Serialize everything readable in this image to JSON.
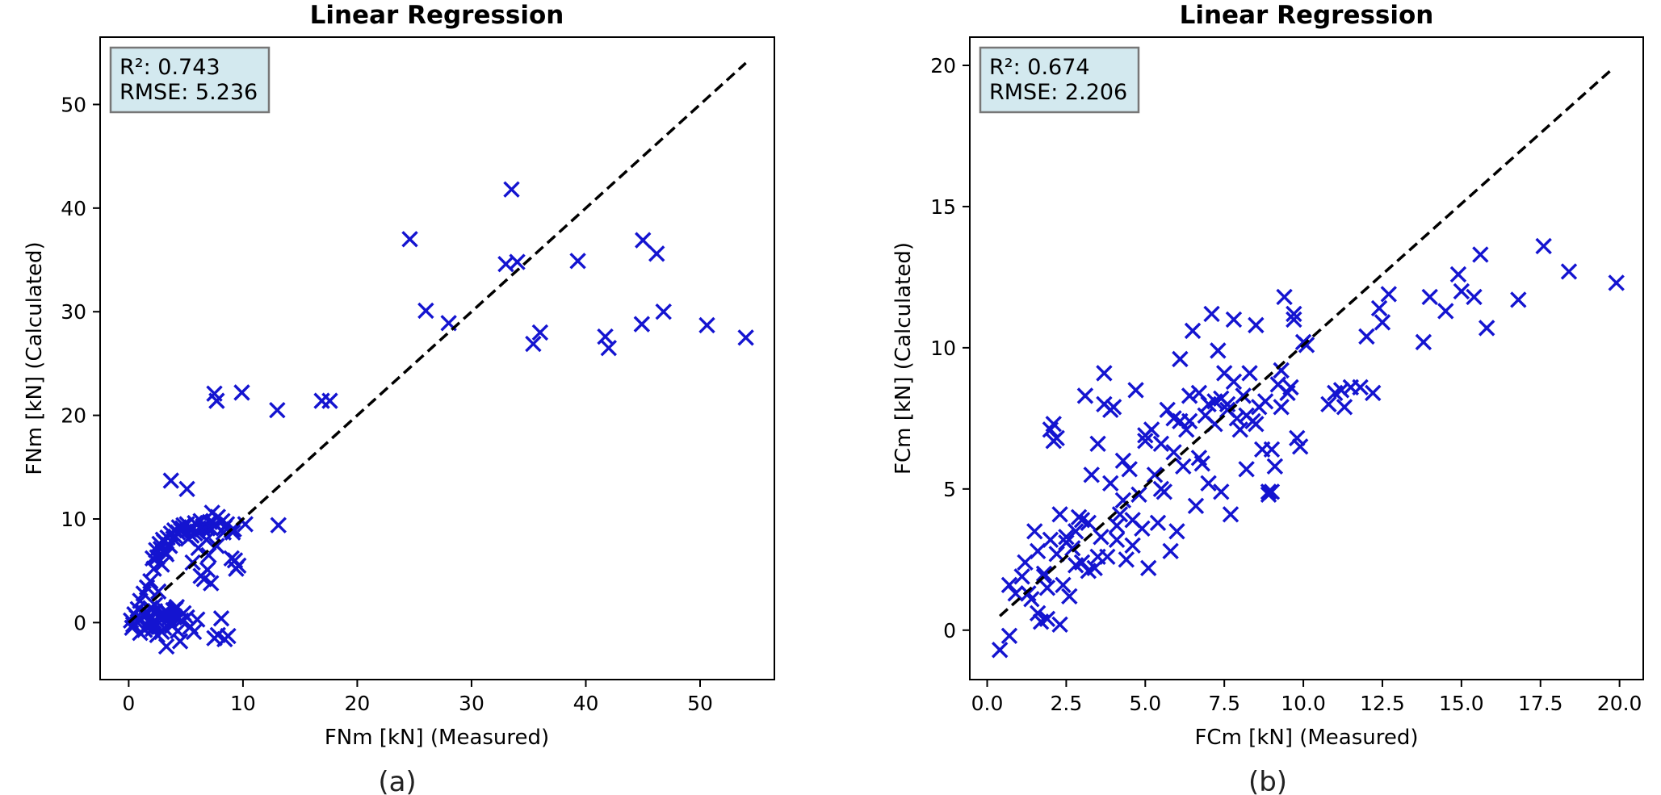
{
  "chart_data": [
    {
      "type": "scatter",
      "panel_label": "(a)",
      "title": "Linear Regression",
      "xlabel": "FNm [kN] (Measured)",
      "ylabel": "FNm [kN] (Calculated)",
      "xlim": [
        -2.5,
        56.5
      ],
      "ylim": [
        -5.5,
        56.5
      ],
      "xticks": [
        0,
        10,
        20,
        30,
        40,
        50
      ],
      "xtick_labels": [
        "0",
        "10",
        "20",
        "30",
        "40",
        "50"
      ],
      "yticks": [
        0,
        10,
        20,
        30,
        40,
        50
      ],
      "ytick_labels": [
        "0",
        "10",
        "20",
        "30",
        "40",
        "50"
      ],
      "stats": {
        "r2_text": "R²: 0.743",
        "rmse_text": "RMSE: 5.236"
      },
      "marker": "x",
      "marker_color": "#1414d0",
      "fit_line": {
        "style": "dashed",
        "color": "#000000",
        "x": [
          0,
          54
        ],
        "y": [
          0,
          54
        ]
      },
      "x": [
        33.5,
        24.6,
        33.0,
        34.0,
        45.0,
        46.2,
        39.3,
        26.0,
        28.0,
        46.8,
        44.9,
        50.6,
        54.0,
        35.4,
        36.0,
        41.7,
        42.0,
        7.7,
        7.5,
        9.9,
        13.0,
        16.9,
        17.6,
        3.7,
        5.1,
        13.1,
        10.2,
        9.6,
        9.4,
        7.0,
        0.2,
        0.5,
        0.8,
        1.0,
        1.3,
        1.6,
        1.9,
        2.2,
        2.5,
        2.8,
        3.1,
        3.4,
        3.7,
        4.0,
        4.4,
        4.8,
        5.3,
        5.8,
        6.3,
        6.9,
        7.6,
        8.4,
        9.2,
        1.5,
        2.0,
        2.3,
        2.6,
        2.9,
        3.2,
        3.5,
        3.9,
        4.3,
        4.7,
        5.1,
        5.5,
        6.0,
        6.5,
        7.1,
        7.8,
        8.6,
        9.0,
        2.1,
        2.4,
        2.7,
        3.0,
        3.3,
        3.6,
        4.1,
        4.6,
        5.2,
        5.8,
        6.5,
        7.3,
        8.2,
        9.1,
        1.1,
        1.4,
        1.7,
        2.0,
        2.3,
        2.6,
        2.9,
        3.2,
        3.5,
        3.8,
        4.1,
        0.4,
        0.7,
        1.0,
        1.3,
        1.6,
        1.9,
        2.2,
        2.5,
        2.8,
        3.1,
        3.4,
        3.7,
        4.0,
        4.3,
        4.6,
        0.3,
        0.9,
        1.5,
        2.1,
        2.7,
        3.3,
        3.9,
        4.5,
        5.1,
        5.7,
        6.3,
        6.9,
        7.5,
        8.1,
        8.7,
        9.3,
        1.2,
        1.8,
        2.4,
        3.0,
        3.6,
        4.2,
        4.8,
        5.4,
        6.0,
        6.6,
        7.2,
        7.8,
        8.4,
        9.0,
        6.1,
        6.8,
        5.6,
        7.2,
        8.3,
        7.7
      ],
      "y": [
        41.8,
        37.0,
        34.6,
        34.8,
        36.9,
        35.6,
        34.9,
        30.1,
        28.9,
        30.0,
        28.8,
        28.7,
        27.5,
        26.9,
        28.0,
        27.6,
        26.5,
        21.4,
        22.1,
        22.2,
        20.5,
        21.4,
        21.4,
        13.7,
        12.9,
        9.4,
        9.5,
        5.5,
        5.2,
        6.5,
        0.2,
        0.8,
        1.3,
        2.1,
        2.8,
        3.4,
        4.0,
        5.2,
        6.3,
        7.1,
        7.8,
        8.2,
        8.6,
        8.9,
        9.2,
        9.4,
        9.0,
        9.6,
        9.8,
        9.1,
        9.4,
        9.2,
        9.0,
        -0.4,
        0.5,
        1.1,
        3.0,
        5.6,
        6.8,
        7.5,
        8.1,
        8.7,
        9.1,
        9.5,
        8.4,
        8.8,
        9.3,
        9.7,
        10.2,
        9.5,
        8.9,
        6.2,
        7.0,
        7.6,
        8.0,
        6.6,
        7.4,
        8.3,
        8.9,
        8.1,
        8.6,
        9.0,
        10.6,
        9.8,
        8.7,
        0.3,
        -0.7,
        0.9,
        -0.2,
        1.7,
        0.6,
        -0.9,
        1.1,
        0.4,
        -0.3,
        1.3,
        -0.2,
        0.5,
        -1.0,
        0.8,
        -0.4,
        1.4,
        0.1,
        -1.2,
        0.7,
        -0.5,
        1.0,
        -0.1,
        0.6,
        -0.8,
        0.2,
        -0.5,
        0.3,
        0.9,
        -0.6,
        0.4,
        -2.3,
        1.2,
        -1.8,
        0.5,
        -0.9,
        4.5,
        5.1,
        -1.5,
        0.4,
        -1.3,
        6.0,
        1.1,
        0.2,
        -0.3,
        0.8,
        -0.1,
        1.5,
        0.9,
        -0.4,
        0.3,
        4.2,
        3.8,
        -1.2,
        -1.6,
        6.2,
        7.2,
        8.0,
        5.8,
        9.1,
        8.7,
        7.4
      ]
    },
    {
      "type": "scatter",
      "panel_label": "(b)",
      "title": "Linear Regression",
      "xlabel": "FCm [kN] (Measured)",
      "ylabel": "FCm [kN] (Calculated)",
      "xlim": [
        -0.55,
        20.75
      ],
      "ylim": [
        -1.75,
        21.0
      ],
      "xticks": [
        0.0,
        2.5,
        5.0,
        7.5,
        10.0,
        12.5,
        15.0,
        17.5,
        20.0
      ],
      "xtick_labels": [
        "0.0",
        "2.5",
        "5.0",
        "7.5",
        "10.0",
        "12.5",
        "15.0",
        "17.5",
        "20.0"
      ],
      "yticks": [
        0,
        5,
        10,
        15,
        20
      ],
      "ytick_labels": [
        "0",
        "5",
        "10",
        "15",
        "20"
      ],
      "stats": {
        "r2_text": "R²: 0.674",
        "rmse_text": "RMSE: 2.206"
      },
      "marker": "x",
      "marker_color": "#1414d0",
      "fit_line": {
        "style": "dashed",
        "color": "#000000",
        "x": [
          0.4,
          19.8
        ],
        "y": [
          0.5,
          19.9
        ]
      },
      "x": [
        0.4,
        0.7,
        0.7,
        0.9,
        1.1,
        1.2,
        1.4,
        1.5,
        1.6,
        1.7,
        1.8,
        1.9,
        2.0,
        2.1,
        2.2,
        2.3,
        2.4,
        2.5,
        2.6,
        2.7,
        2.8,
        2.9,
        3.0,
        3.1,
        3.2,
        3.3,
        3.4,
        3.5,
        3.6,
        3.7,
        3.8,
        3.9,
        4.0,
        4.1,
        4.2,
        4.3,
        4.4,
        4.5,
        4.6,
        4.7,
        4.8,
        4.9,
        5.0,
        5.1,
        5.2,
        5.3,
        5.4,
        5.5,
        5.6,
        5.7,
        5.8,
        5.9,
        6.0,
        6.1,
        6.2,
        6.3,
        6.4,
        6.5,
        6.6,
        6.7,
        6.8,
        6.9,
        7.0,
        7.1,
        7.2,
        7.3,
        7.4,
        7.5,
        7.6,
        7.7,
        7.8,
        7.9,
        8.0,
        8.1,
        8.2,
        8.3,
        8.4,
        8.5,
        8.6,
        8.7,
        8.8,
        8.9,
        9.0,
        9.1,
        9.2,
        9.3,
        9.4,
        9.5,
        9.6,
        9.7,
        9.8,
        9.9,
        10.0,
        10.1,
        10.8,
        11.0,
        11.2,
        11.3,
        11.5,
        11.8,
        12.0,
        12.2,
        12.4,
        12.5,
        12.7,
        13.8,
        14.0,
        14.5,
        14.9,
        15.0,
        15.4,
        15.6,
        15.8,
        16.8,
        17.6,
        18.4,
        19.9,
        2.0,
        2.2,
        3.7,
        3.9,
        4.3,
        6.1,
        6.7,
        7.0,
        7.4,
        7.8,
        8.2,
        8.5,
        9.3,
        9.7,
        1.6,
        1.9,
        2.3,
        2.8,
        3.2,
        4.1,
        5.9,
        7.2,
        8.9,
        9.0,
        2.1,
        3.0,
        4.6,
        5.0,
        5.5,
        6.4,
        7.6,
        1.3,
        1.8,
        2.5,
        3.5
      ],
      "y": [
        -0.7,
        -0.2,
        1.6,
        1.3,
        1.9,
        2.4,
        1.1,
        3.5,
        2.8,
        0.3,
        2.0,
        1.5,
        3.2,
        6.7,
        2.7,
        4.1,
        1.6,
        3.3,
        1.2,
        2.9,
        3.5,
        4.0,
        2.4,
        8.3,
        3.8,
        5.5,
        2.2,
        6.6,
        3.3,
        9.1,
        2.6,
        5.2,
        7.9,
        3.7,
        4.1,
        6.0,
        2.5,
        5.7,
        3.9,
        8.5,
        4.8,
        3.6,
        6.9,
        2.2,
        7.1,
        5.5,
        3.8,
        6.6,
        4.9,
        7.8,
        2.8,
        7.5,
        3.5,
        9.6,
        5.8,
        7.1,
        8.3,
        10.6,
        4.4,
        6.1,
        5.9,
        7.6,
        5.2,
        11.2,
        8.1,
        9.9,
        4.9,
        9.1,
        7.8,
        4.1,
        11.0,
        7.5,
        7.1,
        8.3,
        5.7,
        9.1,
        7.4,
        10.8,
        7.9,
        6.4,
        8.1,
        4.9,
        6.4,
        5.8,
        8.7,
        7.9,
        11.8,
        8.4,
        8.6,
        11.0,
        6.8,
        6.5,
        10.2,
        10.1,
        8.0,
        8.4,
        8.5,
        7.9,
        8.6,
        8.6,
        10.4,
        8.4,
        11.4,
        10.9,
        11.9,
        10.2,
        11.8,
        11.3,
        12.6,
        12.0,
        11.8,
        13.3,
        10.7,
        11.7,
        13.6,
        12.7,
        12.3,
        7.1,
        6.8,
        8.0,
        7.8,
        4.6,
        7.4,
        8.4,
        8.0,
        8.2,
        8.8,
        7.6,
        7.3,
        9.2,
        11.2,
        0.6,
        0.4,
        0.2,
        2.3,
        2.1,
        3.2,
        6.3,
        7.3,
        4.8,
        4.9,
        7.3,
        3.9,
        3.0,
        6.7,
        5.0,
        7.4,
        8.0,
        1.3,
        1.9,
        3.1,
        2.6
      ]
    }
  ]
}
